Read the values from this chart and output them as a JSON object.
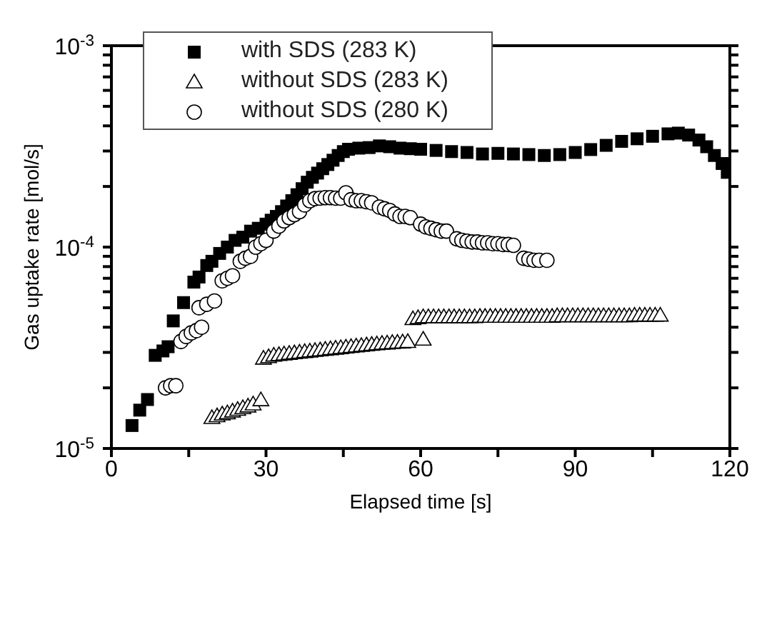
{
  "chart_data": {
    "type": "scatter",
    "xlabel": "Elapsed time [s]",
    "ylabel": "Gas uptake rate [mol/s]",
    "log": "y",
    "legend": "top left",
    "xlim": [
      0,
      120
    ],
    "xticks": [
      0,
      {
        "value": 15,
        "label": null
      },
      30,
      {
        "value": 45,
        "label": null
      },
      60,
      {
        "value": 75,
        "label": null
      },
      90,
      {
        "value": 105,
        "label": null
      },
      120
    ],
    "ylim": [
      1e-05,
      0.001
    ],
    "yticks": [
      {
        "value": 1e-05,
        "label": "10$^{-5}$"
      },
      {
        "value": 2e-05,
        "label": null
      },
      {
        "value": 3e-05,
        "label": null
      },
      {
        "value": 4e-05,
        "label": null
      },
      {
        "value": 5e-05,
        "label": null
      },
      {
        "value": 6e-05,
        "label": null
      },
      {
        "value": 7e-05,
        "label": null
      },
      {
        "value": 8e-05,
        "label": null
      },
      {
        "value": 9e-05,
        "label": null
      },
      {
        "value": 0.0001,
        "label": "10$^{-4}$"
      },
      {
        "value": 0.0002,
        "label": null
      },
      {
        "value": 0.0003,
        "label": null
      },
      {
        "value": 0.0004,
        "label": null
      },
      {
        "value": 0.0005,
        "label": null
      },
      {
        "value": 0.0006,
        "label": null
      },
      {
        "value": 0.0007,
        "label": null
      },
      {
        "value": 0.0008,
        "label": null
      },
      {
        "value": 0.0009,
        "label": null
      },
      {
        "value": 0.001,
        "label": "10$^{-3}$"
      }
    ],
    "series": [
      {
        "name": "with SDS (283 K)",
        "color": "#000000",
        "marker": "square",
        "x": [
          4,
          5.5,
          7,
          8.5,
          10,
          11,
          12,
          14,
          16,
          17,
          18.5,
          19.5,
          21,
          22.5,
          24,
          25.5,
          27,
          28.5,
          30,
          31,
          32,
          33,
          34,
          35,
          36,
          37,
          38,
          39,
          40,
          41,
          42,
          43,
          44,
          45,
          46,
          48,
          50,
          52,
          54,
          56,
          58,
          60,
          63,
          66,
          69,
          72,
          75,
          78,
          81,
          84,
          87,
          90,
          93,
          96,
          99,
          102,
          105,
          108,
          110,
          112,
          114,
          115.5,
          117,
          118.5,
          119.5
        ],
        "values": [
          1.3e-05,
          1.55e-05,
          1.75e-05,
          2.9e-05,
          3.05e-05,
          3.2e-05,
          4.3e-05,
          5.3e-05,
          6.7e-05,
          7.1e-05,
          8.1e-05,
          8.5e-05,
          9.3e-05,
          0.0001,
          0.000108,
          0.000112,
          0.00012,
          0.000124,
          0.00013,
          0.000136,
          0.000142,
          0.00015,
          0.00016,
          0.00017,
          0.000182,
          0.000195,
          0.00021,
          0.000222,
          0.000233,
          0.000245,
          0.000257,
          0.00027,
          0.000285,
          0.000298,
          0.000306,
          0.00031,
          0.000312,
          0.000318,
          0.000315,
          0.00031,
          0.000308,
          0.000306,
          0.000302,
          0.000298,
          0.000295,
          0.00029,
          0.000292,
          0.00029,
          0.000288,
          0.000285,
          0.000288,
          0.000295,
          0.000305,
          0.00032,
          0.000335,
          0.000345,
          0.000355,
          0.000365,
          0.000368,
          0.00036,
          0.00034,
          0.000315,
          0.000285,
          0.00026,
          0.000235
        ]
      },
      {
        "name": "without SDS (283 K)",
        "color": "#000000",
        "marker": "triangle",
        "x": [
          19.5,
          20.5,
          21.5,
          22.5,
          23.5,
          24.5,
          25.5,
          26.5,
          27.5,
          29,
          29.5,
          30.5,
          31.5,
          32.5,
          33.5,
          34.5,
          35.5,
          36.5,
          37.5,
          38.5,
          39.5,
          40.5,
          41.5,
          42.5,
          43.5,
          44.5,
          45.5,
          46.5,
          47.5,
          48.5,
          49.5,
          50.5,
          51.5,
          52.5,
          53.5,
          54.5,
          55.5,
          56.5,
          57.5,
          60.5,
          58.5,
          59.5,
          60.5,
          61.5,
          62.5,
          63.5,
          64.5,
          65.5,
          66.5,
          67.5,
          68.5,
          69.5,
          70.5,
          71.5,
          72.5,
          73.5,
          74.5,
          75.5,
          76.5,
          77.5,
          78.5,
          79.5,
          80.5,
          81.5,
          82.5,
          83.5,
          84.5,
          85.5,
          86.5,
          87.5,
          88.5,
          89.5,
          90.5,
          91.5,
          92.5,
          93.5,
          94.5,
          95.5,
          96.5,
          97.5,
          98.5,
          99.5,
          100.5,
          101.5,
          102.5,
          103.5,
          104.5,
          105.5,
          106.5
        ],
        "values": [
          1.42e-05,
          1.45e-05,
          1.48e-05,
          1.5e-05,
          1.53e-05,
          1.56e-05,
          1.59e-05,
          1.62e-05,
          1.66e-05,
          1.74e-05,
          2.8e-05,
          2.85e-05,
          2.9e-05,
          2.92e-05,
          2.94e-05,
          2.96e-05,
          2.98e-05,
          3e-05,
          3.02e-05,
          3.04e-05,
          3.06e-05,
          3.08e-05,
          3.1e-05,
          3.12e-05,
          3.14e-05,
          3.16e-05,
          3.18e-05,
          3.2e-05,
          3.22e-05,
          3.24e-05,
          3.26e-05,
          3.28e-05,
          3.3e-05,
          3.32e-05,
          3.33e-05,
          3.35e-05,
          3.36e-05,
          3.37e-05,
          3.39e-05,
          3.48e-05,
          4.4e-05,
          4.45e-05,
          4.5e-05,
          4.5e-05,
          4.5e-05,
          4.5e-05,
          4.5e-05,
          4.5e-05,
          4.5e-05,
          4.5e-05,
          4.5e-05,
          4.5e-05,
          4.5e-05,
          4.52e-05,
          4.52e-05,
          4.52e-05,
          4.52e-05,
          4.52e-05,
          4.52e-05,
          4.52e-05,
          4.52e-05,
          4.52e-05,
          4.52e-05,
          4.52e-05,
          4.52e-05,
          4.52e-05,
          4.52e-05,
          4.52e-05,
          4.55e-05,
          4.55e-05,
          4.55e-05,
          4.55e-05,
          4.55e-05,
          4.55e-05,
          4.55e-05,
          4.55e-05,
          4.55e-05,
          4.55e-05,
          4.55e-05,
          4.55e-05,
          4.55e-05,
          4.55e-05,
          4.55e-05,
          4.58e-05,
          4.58e-05,
          4.58e-05,
          4.58e-05,
          4.58e-05,
          4.58e-05
        ]
      },
      {
        "name": "without SDS (280 K)",
        "color": "#000000",
        "marker": "circle",
        "x": [
          10.5,
          11.5,
          12.5,
          13.5,
          14.5,
          15.5,
          16.5,
          17.5,
          17,
          18.5,
          20,
          21.5,
          22.5,
          23.5,
          25,
          26,
          27,
          28,
          29,
          30,
          31.5,
          32.5,
          33.5,
          34.5,
          35.5,
          36.5,
          37.5,
          38.5,
          39.5,
          40.5,
          41.5,
          42.5,
          43.5,
          44.5,
          45.5,
          46.5,
          47.5,
          48.5,
          49.5,
          50.5,
          52,
          53,
          54,
          55,
          56,
          57,
          58,
          60,
          61,
          62,
          63,
          64,
          65,
          67,
          68,
          69,
          70,
          71,
          72,
          73,
          74,
          75,
          76,
          77,
          78,
          80,
          81,
          82,
          83,
          84.5
        ],
        "values": [
          2e-05,
          2.05e-05,
          2.05e-05,
          3.4e-05,
          3.6e-05,
          3.75e-05,
          3.85e-05,
          4e-05,
          5e-05,
          5.2e-05,
          5.4e-05,
          6.8e-05,
          7e-05,
          7.2e-05,
          8.5e-05,
          8.8e-05,
          9e-05,
          0.0001,
          0.000104,
          0.000108,
          0.00012,
          0.000127,
          0.000135,
          0.00014,
          0.000145,
          0.00015,
          0.000162,
          0.00017,
          0.000174,
          0.000175,
          0.000176,
          0.000176,
          0.000175,
          0.000175,
          0.000186,
          0.000172,
          0.00017,
          0.00017,
          0.000168,
          0.000166,
          0.000158,
          0.000155,
          0.000152,
          0.000146,
          0.000142,
          0.000142,
          0.00014,
          0.00013,
          0.000126,
          0.000124,
          0.000122,
          0.00012,
          0.00012,
          0.00011,
          0.000108,
          0.000107,
          0.000106,
          0.000106,
          0.000105,
          0.000105,
          0.000104,
          0.000104,
          0.000103,
          0.000103,
          0.000102,
          8.8e-05,
          8.7e-05,
          8.6e-05,
          8.6e-05,
          8.6e-05
        ]
      }
    ]
  }
}
